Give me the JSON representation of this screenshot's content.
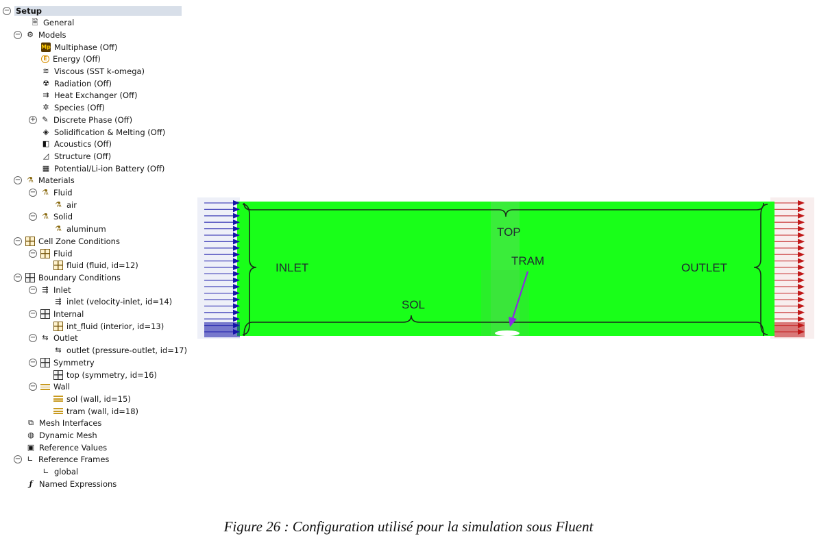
{
  "tree": {
    "items": [
      {
        "label": "Setup",
        "toggle": "−",
        "icon": "",
        "root": true
      },
      {
        "label": "General",
        "toggle": "",
        "icon": "general-icon"
      },
      {
        "label": "Models",
        "toggle": "−",
        "icon": "models-icon"
      },
      {
        "label": "Multiphase (Off)",
        "toggle": "",
        "icon": "multiphase-icon"
      },
      {
        "label": "Energy (Off)",
        "toggle": "",
        "icon": "energy-icon"
      },
      {
        "label": "Viscous (SST k-omega)",
        "toggle": "",
        "icon": "viscous-icon"
      },
      {
        "label": "Radiation (Off)",
        "toggle": "",
        "icon": "radiation-icon"
      },
      {
        "label": "Heat Exchanger (Off)",
        "toggle": "",
        "icon": "heat-exchanger-icon"
      },
      {
        "label": "Species (Off)",
        "toggle": "",
        "icon": "species-icon"
      },
      {
        "label": "Discrete Phase (Off)",
        "toggle": "+",
        "icon": "discrete-phase-icon"
      },
      {
        "label": "Solidification & Melting (Off)",
        "toggle": "",
        "icon": "solidification-icon"
      },
      {
        "label": "Acoustics (Off)",
        "toggle": "",
        "icon": "acoustics-icon"
      },
      {
        "label": "Structure (Off)",
        "toggle": "",
        "icon": "structure-icon"
      },
      {
        "label": "Potential/Li-ion Battery (Off)",
        "toggle": "",
        "icon": "battery-icon"
      },
      {
        "label": "Materials",
        "toggle": "−",
        "icon": "materials-icon"
      },
      {
        "label": "Fluid",
        "toggle": "−",
        "icon": "materials-icon"
      },
      {
        "label": "air",
        "toggle": "",
        "icon": "materials-icon"
      },
      {
        "label": "Solid",
        "toggle": "−",
        "icon": "materials-icon"
      },
      {
        "label": "aluminum",
        "toggle": "",
        "icon": "materials-icon"
      },
      {
        "label": "Cell Zone Conditions",
        "toggle": "−",
        "icon": "cell-zone-icon"
      },
      {
        "label": "Fluid",
        "toggle": "−",
        "icon": "cell-zone-icon"
      },
      {
        "label": "fluid (fluid, id=12)",
        "toggle": "",
        "icon": "cell-zone-icon"
      },
      {
        "label": "Boundary Conditions",
        "toggle": "−",
        "icon": "boundary-icon"
      },
      {
        "label": "Inlet",
        "toggle": "−",
        "icon": "inlet-icon"
      },
      {
        "label": "inlet (velocity-inlet, id=14)",
        "toggle": "",
        "icon": "inlet-icon"
      },
      {
        "label": "Internal",
        "toggle": "−",
        "icon": "boundary-icon"
      },
      {
        "label": "int_fluid (interior, id=13)",
        "toggle": "",
        "icon": "cell-zone-icon"
      },
      {
        "label": "Outlet",
        "toggle": "−",
        "icon": "outlet-icon"
      },
      {
        "label": "outlet (pressure-outlet, id=17)",
        "toggle": "",
        "icon": "outlet-icon"
      },
      {
        "label": "Symmetry",
        "toggle": "−",
        "icon": "boundary-icon"
      },
      {
        "label": "top (symmetry, id=16)",
        "toggle": "",
        "icon": "boundary-icon"
      },
      {
        "label": "Wall",
        "toggle": "−",
        "icon": "wall-icon"
      },
      {
        "label": "sol (wall, id=15)",
        "toggle": "",
        "icon": "wall-icon"
      },
      {
        "label": "tram (wall, id=18)",
        "toggle": "",
        "icon": "wall-icon"
      },
      {
        "label": "Mesh Interfaces",
        "toggle": "",
        "icon": "mesh-interfaces-icon"
      },
      {
        "label": "Dynamic Mesh",
        "toggle": "",
        "icon": "dynamic-mesh-icon"
      },
      {
        "label": "Reference Values",
        "toggle": "",
        "icon": "reference-values-icon"
      },
      {
        "label": "Reference Frames",
        "toggle": "−",
        "icon": "reference-frames-icon"
      },
      {
        "label": "global",
        "toggle": "",
        "icon": "reference-frames-icon"
      },
      {
        "label": "Named Expressions",
        "toggle": "",
        "icon": "named-expressions-icon"
      }
    ]
  },
  "figure": {
    "labels": {
      "top": "TOP",
      "inlet": "INLET",
      "tram": "TRAM",
      "outlet": "OUTLET",
      "sol": "SOL"
    },
    "colors": {
      "domain": "#19ff19",
      "inlet_arrows": "#1515a8",
      "outlet_arrows": "#c01818",
      "tram_arrow": "#8a2be2",
      "tram_obstacle": "#ffffff"
    }
  },
  "caption": "Figure 26 : Configuration utilisé pour la simulation sous Fluent"
}
